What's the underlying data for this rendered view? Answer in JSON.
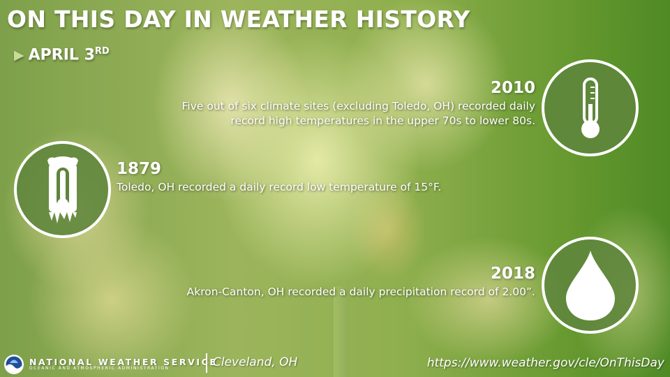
{
  "header": {
    "title": "ON THIS DAY IN WEATHER HISTORY",
    "date_main": "APRIL 3",
    "date_suffix": "RD"
  },
  "events": [
    {
      "year": "2010",
      "line1": "Five out of six climate sites (excluding Toledo, OH) recorded daily",
      "line2": "record high temperatures in the upper 70s to lower 80s.",
      "icon": "thermometer-icon"
    },
    {
      "year": "1879",
      "line1": "Toledo, OH recorded a daily record low temperature of 15°F.",
      "icon": "frozen-thermometer-icon"
    },
    {
      "year": "2018",
      "line1": "Akron-Canton, OH recorded a daily precipitation record of 2.00”.",
      "icon": "raindrop-icon"
    }
  ],
  "footer": {
    "agency": "NATIONAL WEATHER SERVICE",
    "agency_sub": "OCEANIC AND ATMOSPHERIC ADMINISTRATION",
    "office": "Cleveland, OH",
    "url": "https://www.weather.gov/cle/OnThisDay"
  },
  "colors": {
    "circle_fill": "#5e853c",
    "accent_arrow": "#c8dc9a",
    "background_green": "#66992f"
  }
}
